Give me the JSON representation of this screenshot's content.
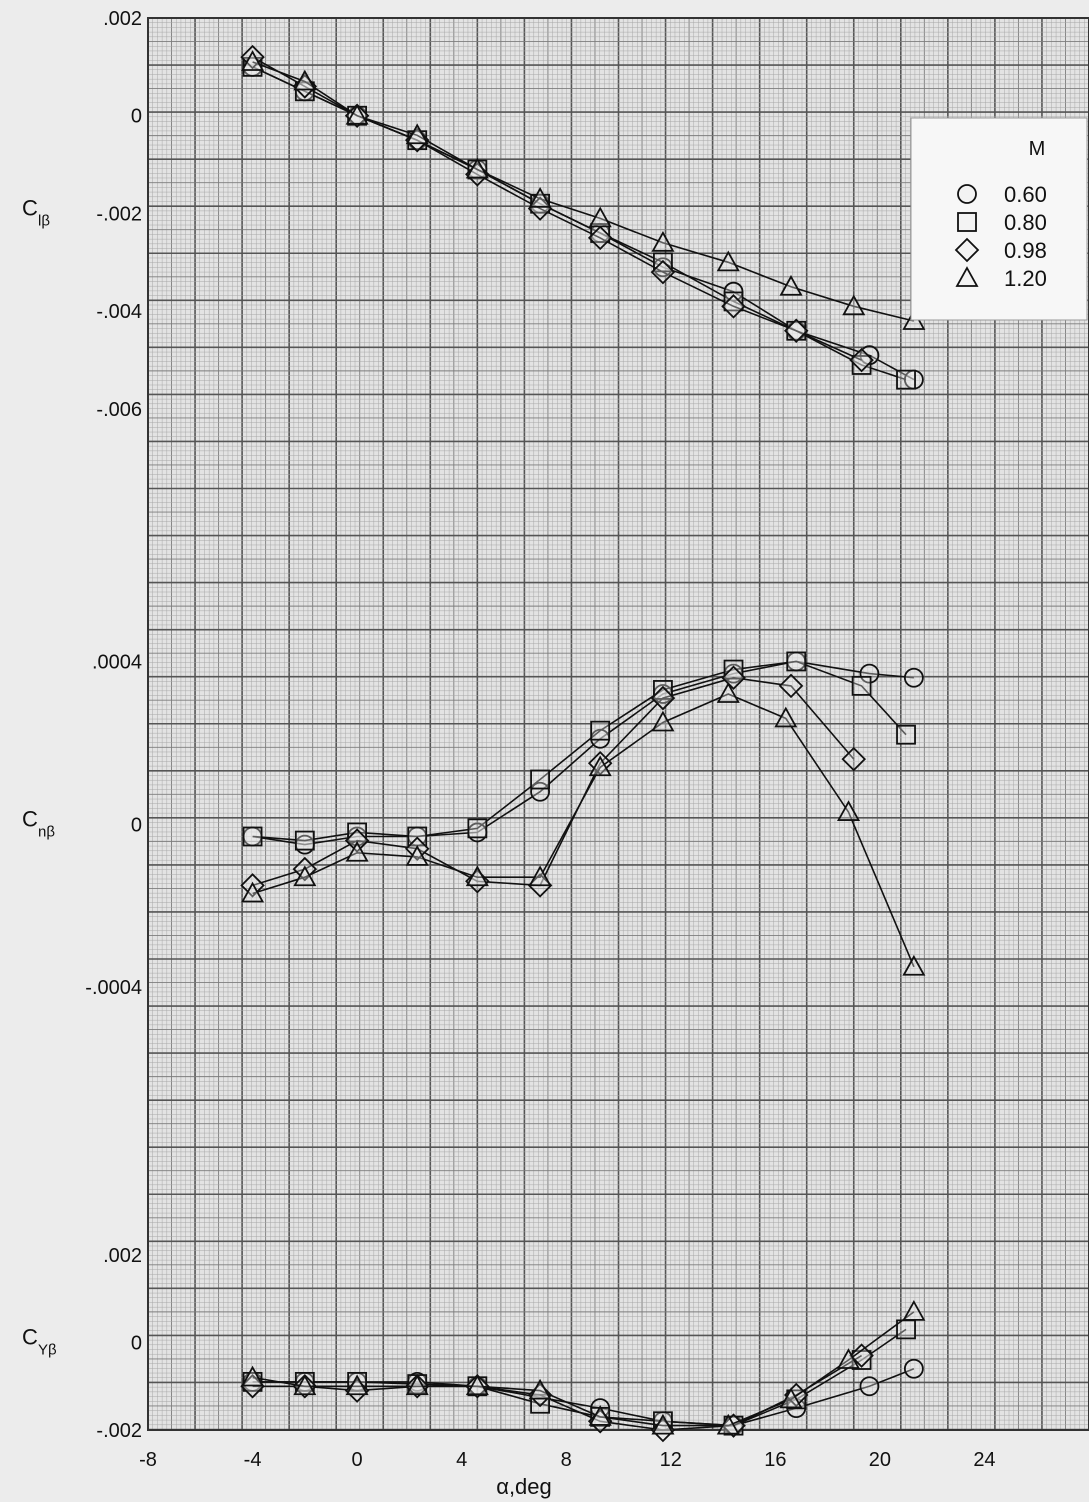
{
  "chart_data": [
    {
      "type": "line",
      "panel": "top",
      "ylabel": "C",
      "ylabel_sub": "lβ",
      "xlim": [
        -8,
        28
      ],
      "ylim": [
        -0.0095,
        0.002
      ],
      "y_ticks": [
        0.002,
        0,
        -0.002,
        -0.004,
        -0.006
      ],
      "y_tick_labels": [
        ".002",
        "0",
        "-.002",
        "-.004",
        "-.006"
      ],
      "grid": true,
      "series": [
        {
          "name": "0.60",
          "marker": "circle",
          "x": [
            -4,
            -2,
            0,
            2.3,
            4.6,
            7,
            9.3,
            11.7,
            14.4,
            16.8,
            19.6,
            21.3
          ],
          "y": [
            0.001,
            0.0005,
            0,
            -0.0005,
            -0.0011,
            -0.0018,
            -0.0024,
            -0.0031,
            -0.0036,
            -0.0044,
            -0.0049,
            -0.0054
          ]
        },
        {
          "name": "0.80",
          "marker": "square",
          "x": [
            -4,
            -2,
            0,
            2.3,
            4.6,
            7,
            9.3,
            11.7,
            14.4,
            16.8,
            19.3,
            21
          ],
          "y": [
            0.001,
            0.0005,
            0,
            -0.0005,
            -0.0011,
            -0.0018,
            -0.0024,
            -0.003,
            -0.0038,
            -0.0044,
            -0.0051,
            -0.0054
          ]
        },
        {
          "name": "0.98",
          "marker": "diamond",
          "x": [
            -4,
            -2,
            0,
            2.3,
            4.6,
            7,
            9.3,
            11.7,
            14.4,
            16.8,
            19.3
          ],
          "y": [
            0.0012,
            0.0006,
            0,
            -0.0005,
            -0.0012,
            -0.0019,
            -0.0025,
            -0.0032,
            -0.0039,
            -0.0044,
            -0.005
          ]
        },
        {
          "name": "1.20",
          "marker": "triangle",
          "x": [
            -4,
            -2,
            0,
            2.3,
            4.6,
            7,
            9.3,
            11.7,
            14.2,
            16.6,
            19,
            21.3
          ],
          "y": [
            0.0011,
            0.0007,
            0,
            -0.0004,
            -0.0011,
            -0.0017,
            -0.0021,
            -0.0026,
            -0.003,
            -0.0035,
            -0.0039,
            -0.0042
          ]
        }
      ]
    },
    {
      "type": "line",
      "panel": "middle",
      "ylabel": "C",
      "ylabel_sub": "nβ",
      "xlim": [
        -8,
        28
      ],
      "ylim": [
        -0.0008,
        0.0006
      ],
      "y_ticks": [
        0.0004,
        0,
        -0.0004
      ],
      "y_tick_labels": [
        ".0004",
        "0",
        "-.0004"
      ],
      "grid": true,
      "series": [
        {
          "name": "0.60",
          "marker": "circle",
          "x": [
            -4,
            -2,
            0,
            2.3,
            4.6,
            7,
            9.3,
            11.7,
            14.4,
            16.8,
            19.6,
            21.3
          ],
          "y": [
            -3e-05,
            -5e-05,
            -3e-05,
            -3e-05,
            -2e-05,
            8e-05,
            0.00021,
            0.00032,
            0.00037,
            0.0004,
            0.00037,
            0.00036
          ]
        },
        {
          "name": "0.80",
          "marker": "square",
          "x": [
            -4,
            -2,
            0,
            2.3,
            4.6,
            7,
            9.3,
            11.7,
            14.4,
            16.8,
            19.3,
            21
          ],
          "y": [
            -3e-05,
            -4e-05,
            -2e-05,
            -3e-05,
            -1e-05,
            0.00011,
            0.00023,
            0.00033,
            0.00038,
            0.0004,
            0.00034,
            0.00022
          ]
        },
        {
          "name": "0.98",
          "marker": "diamond",
          "x": [
            -4,
            -2,
            0,
            2.3,
            4.6,
            7,
            9.3,
            11.7,
            14.4,
            16.6,
            19
          ],
          "y": [
            -0.00015,
            -0.00011,
            -4e-05,
            -6e-05,
            -0.00014,
            -0.00015,
            0.00015,
            0.00031,
            0.00036,
            0.00034,
            0.00016
          ]
        },
        {
          "name": "1.20",
          "marker": "triangle",
          "x": [
            -4,
            -2,
            0,
            2.3,
            4.6,
            7,
            9.3,
            11.7,
            14.2,
            16.4,
            18.8,
            21.3
          ],
          "y": [
            -0.00017,
            -0.00013,
            -7e-05,
            -8e-05,
            -0.00013,
            -0.00013,
            0.00014,
            0.00025,
            0.00032,
            0.00026,
            3e-05,
            -0.00035
          ]
        }
      ]
    },
    {
      "type": "line",
      "panel": "bottom",
      "ylabel": "C",
      "ylabel_sub": "Yβ",
      "xlabel": "α,deg",
      "xlim": [
        -8,
        28
      ],
      "x_ticks": [
        -8,
        -4,
        0,
        4,
        8,
        12,
        16,
        20,
        24
      ],
      "x_tick_labels": [
        "-8",
        "-4",
        "0",
        "4",
        "8",
        "12",
        "16",
        "20",
        "24"
      ],
      "ylim": [
        -0.002,
        0.0044
      ],
      "y_ticks": [
        0.002,
        0,
        -0.002
      ],
      "y_tick_labels": [
        ".002",
        "0",
        "-.002"
      ],
      "grid": true,
      "series": [
        {
          "name": "0.60",
          "marker": "circle",
          "x": [
            -4,
            -2,
            0,
            2.3,
            4.6,
            9.3,
            11.7,
            14.4,
            16.8,
            19.6,
            21.3
          ],
          "y": [
            -0.0009,
            -0.0009,
            -0.0009,
            -0.0009,
            -0.001,
            -0.0015,
            -0.0018,
            -0.0019,
            -0.0015,
            -0.001,
            -0.0006
          ]
        },
        {
          "name": "0.80",
          "marker": "square",
          "x": [
            -4,
            -2,
            0,
            2.3,
            4.6,
            7,
            9.3,
            11.7,
            14.4,
            16.8,
            19.3,
            21
          ],
          "y": [
            -0.0009,
            -0.0009,
            -0.0009,
            -0.00095,
            -0.001,
            -0.0014,
            -0.0017,
            -0.0018,
            -0.0019,
            -0.0013,
            -0.0004,
            0.0003
          ]
        },
        {
          "name": "0.98",
          "marker": "diamond",
          "x": [
            -4,
            -2,
            0,
            2.3,
            4.6,
            7,
            9.3,
            11.7,
            14.4,
            16.8,
            19.3
          ],
          "y": [
            -0.001,
            -0.001,
            -0.0011,
            -0.001,
            -0.001,
            -0.0012,
            -0.0018,
            -0.002,
            -0.0019,
            -0.0012,
            -0.0003
          ]
        },
        {
          "name": "1.20",
          "marker": "triangle",
          "x": [
            -4,
            -2,
            0,
            2.3,
            4.6,
            7,
            9.3,
            11.7,
            14.2,
            16.6,
            18.8,
            21.3
          ],
          "y": [
            -0.0008,
            -0.001,
            -0.001,
            -0.001,
            -0.001,
            -0.0011,
            -0.0017,
            -0.0019,
            -0.0019,
            -0.0013,
            -0.0004,
            0.0007
          ]
        }
      ]
    }
  ],
  "legend": {
    "title": "M",
    "placement": "top-right",
    "entries": [
      {
        "marker": "circle",
        "label": "0.60"
      },
      {
        "marker": "square",
        "label": "0.80"
      },
      {
        "marker": "diamond",
        "label": "0.98"
      },
      {
        "marker": "triangle",
        "label": "1.20"
      }
    ]
  },
  "colors": {
    "grid_paper": "#e6e6e6",
    "grid_minor": "#a8a8a8",
    "grid_major": "#555555",
    "ink": "#111111"
  }
}
